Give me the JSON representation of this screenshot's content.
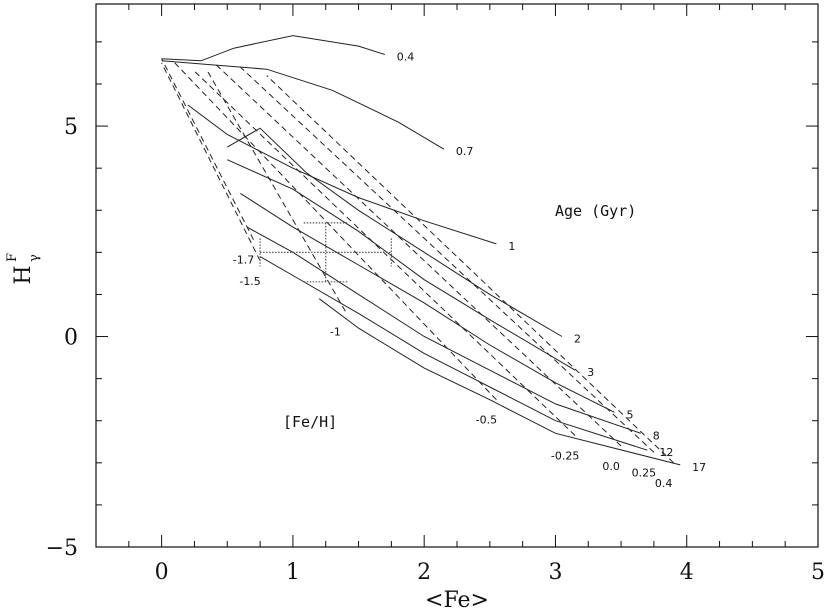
{
  "chart_data": {
    "type": "line",
    "xlim": [
      -0.5,
      5
    ],
    "ylim": [
      -5,
      7.9
    ],
    "xticks": [
      "0",
      "1",
      "2",
      "3",
      "4",
      "5"
    ],
    "yticks": [
      "-5",
      "0",
      "5"
    ],
    "xlabel": "<Fe>",
    "ylabel": "H",
    "ylabel_sup": "F",
    "ylabel_sub": "γ",
    "annotations": {
      "age_title": "Age (Gyr)",
      "metal_title": "[Fe/H]"
    },
    "metallicity_tracks": [
      {
        "label": "-1.7",
        "points": [
          [
            0.7,
            2.3
          ],
          [
            0.0,
            6.6
          ]
        ]
      },
      {
        "label": "-1.5",
        "points": [
          [
            0.75,
            1.8
          ],
          [
            0.0,
            6.5
          ]
        ]
      },
      {
        "label": "-1",
        "points": [
          [
            1.4,
            0.6
          ],
          [
            0.35,
            6.3
          ]
        ]
      },
      {
        "label": "-0.5",
        "points": [
          [
            2.55,
            -1.5
          ],
          [
            0.1,
            6.5
          ]
        ]
      },
      {
        "label": "-0.25",
        "points": [
          [
            3.15,
            -2.35
          ],
          [
            0.25,
            6.3
          ]
        ]
      },
      {
        "label": "0.0",
        "points": [
          [
            3.5,
            -2.6
          ],
          [
            0.4,
            6.5
          ]
        ]
      },
      {
        "label": "0.25",
        "points": [
          [
            3.75,
            -2.75
          ],
          [
            0.6,
            6.4
          ]
        ]
      },
      {
        "label": "0.4",
        "points": [
          [
            3.9,
            -3.0
          ],
          [
            0.8,
            6.2
          ]
        ]
      }
    ],
    "age_isochrones": [
      {
        "label": "0.4",
        "points": [
          [
            0.0,
            6.6
          ],
          [
            0.3,
            6.55
          ],
          [
            0.55,
            6.85
          ],
          [
            1.0,
            7.15
          ],
          [
            1.5,
            6.9
          ],
          [
            1.7,
            6.7
          ]
        ]
      },
      {
        "label": "0.7",
        "points": [
          [
            0.0,
            6.55
          ],
          [
            0.4,
            6.45
          ],
          [
            0.8,
            6.35
          ],
          [
            1.3,
            5.85
          ],
          [
            1.8,
            5.1
          ],
          [
            2.15,
            4.45
          ]
        ]
      },
      {
        "label": "1",
        "points": [
          [
            0.2,
            5.5
          ],
          [
            0.5,
            4.8
          ],
          [
            1.0,
            4.0
          ],
          [
            1.5,
            3.3
          ],
          [
            2.0,
            2.75
          ],
          [
            2.55,
            2.2
          ]
        ]
      },
      {
        "label": "2",
        "points": [
          [
            0.5,
            4.5
          ],
          [
            0.75,
            4.95
          ],
          [
            1.1,
            3.9
          ],
          [
            1.5,
            3.0
          ],
          [
            2.0,
            2.0
          ],
          [
            2.5,
            1.0
          ],
          [
            3.05,
            0.0
          ]
        ]
      },
      {
        "label": "3",
        "points": [
          [
            0.5,
            4.2
          ],
          [
            1.0,
            3.5
          ],
          [
            1.5,
            2.5
          ],
          [
            2.0,
            1.35
          ],
          [
            2.5,
            0.4
          ],
          [
            3.15,
            -0.8
          ]
        ]
      },
      {
        "label": "5",
        "points": [
          [
            0.6,
            3.4
          ],
          [
            1.0,
            2.6
          ],
          [
            1.5,
            1.7
          ],
          [
            2.0,
            0.8
          ],
          [
            2.5,
            -0.2
          ],
          [
            3.0,
            -1.1
          ],
          [
            3.45,
            -1.8
          ]
        ]
      },
      {
        "label": "8",
        "points": [
          [
            0.65,
            2.6
          ],
          [
            1.0,
            2.0
          ],
          [
            1.5,
            1.0
          ],
          [
            2.0,
            0.0
          ],
          [
            2.5,
            -0.8
          ],
          [
            3.0,
            -1.6
          ],
          [
            3.65,
            -2.3
          ]
        ]
      },
      {
        "label": "12",
        "points": [
          [
            0.75,
            1.9
          ],
          [
            1.0,
            1.45
          ],
          [
            1.5,
            0.55
          ],
          [
            2.0,
            -0.4
          ],
          [
            2.5,
            -1.2
          ],
          [
            3.0,
            -2.0
          ],
          [
            3.7,
            -2.7
          ]
        ]
      },
      {
        "label": "17",
        "points": [
          [
            1.2,
            0.9
          ],
          [
            1.5,
            0.2
          ],
          [
            2.0,
            -0.75
          ],
          [
            2.5,
            -1.5
          ],
          [
            3.0,
            -2.3
          ],
          [
            3.95,
            -3.05
          ]
        ]
      }
    ],
    "error_bar": {
      "x": 1.25,
      "y": 2.0,
      "xerr": 0.5,
      "yerr": 0.7,
      "y_outer_err": 1.5
    }
  }
}
